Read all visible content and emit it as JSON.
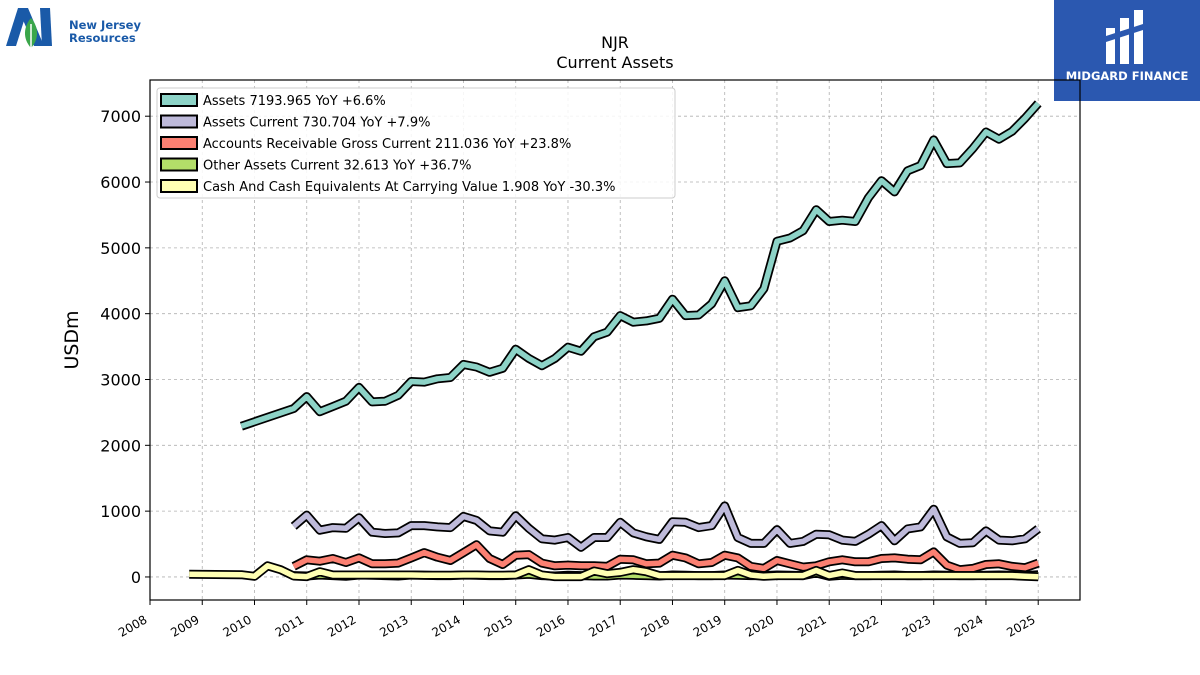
{
  "logos": {
    "left_name_line1": "New Jersey",
    "left_name_line2": "Resources",
    "right_name": "MIDGARD FINANCE"
  },
  "chart_data": {
    "type": "line",
    "title": "NJR",
    "subtitle": "Current  Assets",
    "xlabel": "",
    "ylabel": "USDm",
    "xlim": [
      2008.0,
      2025.8
    ],
    "ylim": [
      -350,
      7550
    ],
    "xticks": [
      "2008",
      "2009",
      "2010",
      "2011",
      "2012",
      "2013",
      "2014",
      "2015",
      "2016",
      "2017",
      "2018",
      "2019",
      "2020",
      "2021",
      "2022",
      "2023",
      "2024",
      "2025"
    ],
    "yticks": [
      0,
      1000,
      2000,
      3000,
      4000,
      5000,
      6000,
      7000
    ],
    "grid": true,
    "legend_position": "top-left",
    "series": [
      {
        "name": "Assets",
        "legend": "Assets  7193.965 YoY +6.6%",
        "color": "#8dd3c7",
        "points": [
          [
            2009.75,
            2290
          ],
          [
            2010.75,
            2560
          ],
          [
            2011.0,
            2740
          ],
          [
            2011.25,
            2510
          ],
          [
            2011.5,
            2590
          ],
          [
            2011.75,
            2670
          ],
          [
            2012.0,
            2880
          ],
          [
            2012.25,
            2660
          ],
          [
            2012.5,
            2670
          ],
          [
            2012.75,
            2760
          ],
          [
            2013.0,
            2970
          ],
          [
            2013.25,
            2960
          ],
          [
            2013.5,
            3010
          ],
          [
            2013.75,
            3030
          ],
          [
            2014.0,
            3230
          ],
          [
            2014.25,
            3190
          ],
          [
            2014.5,
            3110
          ],
          [
            2014.75,
            3170
          ],
          [
            2015.0,
            3460
          ],
          [
            2015.25,
            3320
          ],
          [
            2015.5,
            3210
          ],
          [
            2015.75,
            3320
          ],
          [
            2016.0,
            3490
          ],
          [
            2016.25,
            3430
          ],
          [
            2016.5,
            3650
          ],
          [
            2016.75,
            3720
          ],
          [
            2017.0,
            3970
          ],
          [
            2017.25,
            3870
          ],
          [
            2017.5,
            3890
          ],
          [
            2017.75,
            3930
          ],
          [
            2018.0,
            4220
          ],
          [
            2018.25,
            3970
          ],
          [
            2018.5,
            3980
          ],
          [
            2018.75,
            4150
          ],
          [
            2019.0,
            4500
          ],
          [
            2019.25,
            4090
          ],
          [
            2019.5,
            4120
          ],
          [
            2019.75,
            4380
          ],
          [
            2020.0,
            5100
          ],
          [
            2020.25,
            5150
          ],
          [
            2020.5,
            5260
          ],
          [
            2020.75,
            5580
          ],
          [
            2021.0,
            5400
          ],
          [
            2021.25,
            5420
          ],
          [
            2021.5,
            5400
          ],
          [
            2021.75,
            5760
          ],
          [
            2022.0,
            6020
          ],
          [
            2022.25,
            5850
          ],
          [
            2022.5,
            6170
          ],
          [
            2022.75,
            6250
          ],
          [
            2023.0,
            6640
          ],
          [
            2023.25,
            6280
          ],
          [
            2023.5,
            6290
          ],
          [
            2023.75,
            6510
          ],
          [
            2024.0,
            6760
          ],
          [
            2024.25,
            6650
          ],
          [
            2024.5,
            6770
          ],
          [
            2024.75,
            6970
          ],
          [
            2025.0,
            7194
          ]
        ]
      },
      {
        "name": "Assets Current",
        "legend": "Assets Current  730.704 YoY +7.9%",
        "color": "#bebada",
        "points": [
          [
            2010.75,
            770
          ],
          [
            2011.0,
            940
          ],
          [
            2011.25,
            710
          ],
          [
            2011.5,
            750
          ],
          [
            2011.75,
            740
          ],
          [
            2012.0,
            900
          ],
          [
            2012.25,
            680
          ],
          [
            2012.5,
            660
          ],
          [
            2012.75,
            670
          ],
          [
            2013.0,
            780
          ],
          [
            2013.25,
            780
          ],
          [
            2013.5,
            760
          ],
          [
            2013.75,
            750
          ],
          [
            2014.0,
            920
          ],
          [
            2014.25,
            860
          ],
          [
            2014.5,
            700
          ],
          [
            2014.75,
            680
          ],
          [
            2015.0,
            930
          ],
          [
            2015.25,
            740
          ],
          [
            2015.5,
            580
          ],
          [
            2015.75,
            560
          ],
          [
            2016.0,
            600
          ],
          [
            2016.25,
            450
          ],
          [
            2016.5,
            600
          ],
          [
            2016.75,
            600
          ],
          [
            2017.0,
            830
          ],
          [
            2017.25,
            670
          ],
          [
            2017.5,
            610
          ],
          [
            2017.75,
            570
          ],
          [
            2018.0,
            840
          ],
          [
            2018.25,
            830
          ],
          [
            2018.5,
            750
          ],
          [
            2018.75,
            780
          ],
          [
            2019.0,
            1080
          ],
          [
            2019.25,
            600
          ],
          [
            2019.5,
            510
          ],
          [
            2019.75,
            510
          ],
          [
            2020.0,
            720
          ],
          [
            2020.25,
            510
          ],
          [
            2020.5,
            540
          ],
          [
            2020.75,
            650
          ],
          [
            2021.0,
            640
          ],
          [
            2021.25,
            560
          ],
          [
            2021.5,
            540
          ],
          [
            2021.75,
            650
          ],
          [
            2022.0,
            780
          ],
          [
            2022.25,
            550
          ],
          [
            2022.5,
            730
          ],
          [
            2022.75,
            760
          ],
          [
            2023.0,
            1030
          ],
          [
            2023.25,
            610
          ],
          [
            2023.5,
            510
          ],
          [
            2023.75,
            520
          ],
          [
            2024.0,
            700
          ],
          [
            2024.25,
            560
          ],
          [
            2024.5,
            550
          ],
          [
            2024.75,
            580
          ],
          [
            2025.0,
            731
          ]
        ]
      },
      {
        "name": "Accounts Receivable Gross Current",
        "legend": "Accounts Receivable Gross Current  211.036 YoY +23.8%",
        "color": "#fb8072",
        "points": [
          [
            2010.75,
            160
          ],
          [
            2011.0,
            260
          ],
          [
            2011.25,
            240
          ],
          [
            2011.5,
            280
          ],
          [
            2011.75,
            220
          ],
          [
            2012.0,
            290
          ],
          [
            2012.25,
            200
          ],
          [
            2012.5,
            200
          ],
          [
            2012.75,
            210
          ],
          [
            2013.0,
            290
          ],
          [
            2013.25,
            370
          ],
          [
            2013.5,
            300
          ],
          [
            2013.75,
            250
          ],
          [
            2014.0,
            370
          ],
          [
            2014.25,
            490
          ],
          [
            2014.5,
            280
          ],
          [
            2014.75,
            190
          ],
          [
            2015.0,
            330
          ],
          [
            2015.25,
            340
          ],
          [
            2015.5,
            210
          ],
          [
            2015.75,
            170
          ],
          [
            2016.0,
            180
          ],
          [
            2016.25,
            170
          ],
          [
            2016.5,
            170
          ],
          [
            2016.75,
            160
          ],
          [
            2017.0,
            270
          ],
          [
            2017.25,
            260
          ],
          [
            2017.5,
            200
          ],
          [
            2017.75,
            210
          ],
          [
            2018.0,
            330
          ],
          [
            2018.25,
            290
          ],
          [
            2018.5,
            200
          ],
          [
            2018.75,
            220
          ],
          [
            2019.0,
            330
          ],
          [
            2019.25,
            290
          ],
          [
            2019.5,
            160
          ],
          [
            2019.75,
            130
          ],
          [
            2020.0,
            250
          ],
          [
            2020.25,
            200
          ],
          [
            2020.5,
            150
          ],
          [
            2020.75,
            170
          ],
          [
            2021.0,
            230
          ],
          [
            2021.25,
            260
          ],
          [
            2021.5,
            230
          ],
          [
            2021.75,
            230
          ],
          [
            2022.0,
            280
          ],
          [
            2022.25,
            290
          ],
          [
            2022.5,
            270
          ],
          [
            2022.75,
            260
          ],
          [
            2023.0,
            380
          ],
          [
            2023.25,
            180
          ],
          [
            2023.5,
            110
          ],
          [
            2023.75,
            130
          ],
          [
            2024.0,
            190
          ],
          [
            2024.25,
            200
          ],
          [
            2024.5,
            160
          ],
          [
            2024.75,
            140
          ],
          [
            2025.0,
            211
          ]
        ]
      },
      {
        "name": "Other Assets Current",
        "legend": "Other Assets Current  32.613 YoY +36.7%",
        "color": "#b3de69",
        "points": [
          [
            2010.75,
            20
          ],
          [
            2011.0,
            15
          ],
          [
            2011.25,
            30
          ],
          [
            2011.5,
            20
          ],
          [
            2011.75,
            10
          ],
          [
            2012.0,
            30
          ],
          [
            2012.25,
            25
          ],
          [
            2012.5,
            20
          ],
          [
            2012.75,
            15
          ],
          [
            2013.0,
            30
          ],
          [
            2013.25,
            25
          ],
          [
            2013.5,
            20
          ],
          [
            2013.75,
            20
          ],
          [
            2014.0,
            30
          ],
          [
            2014.25,
            25
          ],
          [
            2014.5,
            20
          ],
          [
            2014.75,
            20
          ],
          [
            2015.0,
            30
          ],
          [
            2015.25,
            40
          ],
          [
            2015.5,
            20
          ],
          [
            2015.75,
            15
          ],
          [
            2016.0,
            25
          ],
          [
            2016.25,
            20
          ],
          [
            2016.5,
            15
          ],
          [
            2016.75,
            15
          ],
          [
            2017.0,
            30
          ],
          [
            2017.25,
            25
          ],
          [
            2017.5,
            20
          ],
          [
            2017.75,
            15
          ],
          [
            2018.0,
            30
          ],
          [
            2018.25,
            25
          ],
          [
            2018.5,
            20
          ],
          [
            2018.75,
            20
          ],
          [
            2019.0,
            30
          ],
          [
            2019.25,
            25
          ],
          [
            2019.5,
            20
          ],
          [
            2019.75,
            20
          ],
          [
            2020.0,
            30
          ],
          [
            2020.25,
            25
          ],
          [
            2020.5,
            20
          ],
          [
            2020.75,
            60
          ],
          [
            2021.0,
            10
          ],
          [
            2021.25,
            25
          ],
          [
            2021.5,
            20
          ],
          [
            2021.75,
            20
          ],
          [
            2022.0,
            25
          ],
          [
            2022.25,
            30
          ],
          [
            2022.5,
            20
          ],
          [
            2022.75,
            20
          ],
          [
            2023.0,
            30
          ],
          [
            2023.25,
            25
          ],
          [
            2023.5,
            20
          ],
          [
            2023.75,
            20
          ],
          [
            2024.0,
            25
          ],
          [
            2024.25,
            30
          ],
          [
            2024.5,
            25
          ],
          [
            2024.75,
            20
          ],
          [
            2025.0,
            33
          ]
        ]
      },
      {
        "name": "Cash And Cash Equivalents At Carrying Value",
        "legend": "Cash And Cash Equivalents At Carrying Value  1.908 YoY -30.3%",
        "color": "#ffffb3",
        "points": [
          [
            2008.75,
            40
          ],
          [
            2009.75,
            35
          ],
          [
            2010.0,
            10
          ],
          [
            2010.25,
            170
          ],
          [
            2010.5,
            110
          ],
          [
            2010.75,
            15
          ],
          [
            2011.0,
            5
          ],
          [
            2011.25,
            80
          ],
          [
            2011.5,
            30
          ],
          [
            2011.75,
            30
          ],
          [
            2012.0,
            30
          ],
          [
            2012.25,
            30
          ],
          [
            2012.5,
            30
          ],
          [
            2012.75,
            30
          ],
          [
            2013.0,
            30
          ],
          [
            2013.25,
            25
          ],
          [
            2013.5,
            25
          ],
          [
            2013.75,
            25
          ],
          [
            2014.0,
            30
          ],
          [
            2014.25,
            30
          ],
          [
            2014.5,
            25
          ],
          [
            2014.75,
            25
          ],
          [
            2015.0,
            30
          ],
          [
            2015.25,
            110
          ],
          [
            2015.5,
            30
          ],
          [
            2015.75,
            5
          ],
          [
            2016.0,
            5
          ],
          [
            2016.25,
            5
          ],
          [
            2016.5,
            90
          ],
          [
            2016.75,
            50
          ],
          [
            2017.0,
            70
          ],
          [
            2017.25,
            110
          ],
          [
            2017.5,
            80
          ],
          [
            2017.75,
            20
          ],
          [
            2018.0,
            20
          ],
          [
            2018.25,
            20
          ],
          [
            2018.5,
            20
          ],
          [
            2018.75,
            20
          ],
          [
            2019.0,
            20
          ],
          [
            2019.25,
            100
          ],
          [
            2019.5,
            30
          ],
          [
            2019.75,
            10
          ],
          [
            2020.0,
            20
          ],
          [
            2020.25,
            20
          ],
          [
            2020.5,
            20
          ],
          [
            2020.75,
            100
          ],
          [
            2021.0,
            20
          ],
          [
            2021.25,
            60
          ],
          [
            2021.5,
            20
          ],
          [
            2021.75,
            20
          ],
          [
            2022.0,
            20
          ],
          [
            2022.25,
            20
          ],
          [
            2022.5,
            20
          ],
          [
            2022.75,
            20
          ],
          [
            2023.0,
            20
          ],
          [
            2023.25,
            20
          ],
          [
            2023.5,
            20
          ],
          [
            2023.75,
            20
          ],
          [
            2024.0,
            20
          ],
          [
            2024.25,
            20
          ],
          [
            2024.5,
            20
          ],
          [
            2024.75,
            10
          ],
          [
            2025.0,
            2
          ]
        ]
      }
    ]
  }
}
